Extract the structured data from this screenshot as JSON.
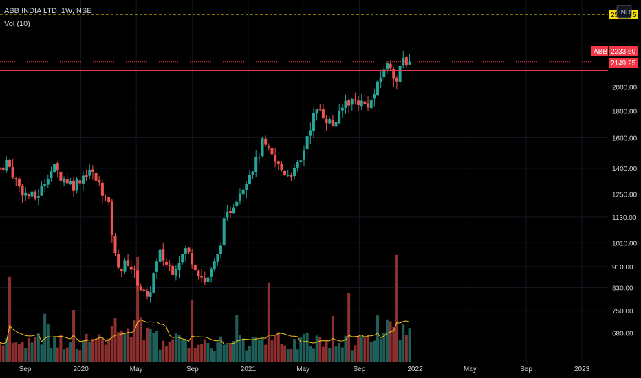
{
  "header": {
    "title": "ABB INDIA LTD, 1W, NSE",
    "volume_label": "Vol (10)"
  },
  "currency_badge": "INR",
  "colors": {
    "up": "#26a69a",
    "down": "#ef5350",
    "up_volume": "#1f5f5a",
    "down_volume": "#8c2f2e",
    "volume_ma": "#f5c518",
    "price_line": "#f23645",
    "alert_line": "#f5e000",
    "text": "#d1d4dc"
  },
  "chart_data": {
    "type": "candlestick",
    "title": "ABB INDIA LTD, 1W, NSE",
    "y_scale": "log",
    "ylim": [
      630,
      2650
    ],
    "y_ticks": [
      680,
      750,
      830,
      910,
      1010,
      1130,
      1250,
      1400,
      1600,
      1800,
      2000
    ],
    "y_tick_labels": [
      "680.00",
      "750.00",
      "830.00",
      "910.00",
      "1010.00",
      "1130.00",
      "1250.00",
      "1400.00",
      "1600.00",
      "1800.00",
      "2000.00"
    ],
    "x_range": [
      "2019-07-08",
      "2023-02-27"
    ],
    "x_ticks": [
      {
        "date": "2019-09-01",
        "label": "Sep"
      },
      {
        "date": "2020-01-01",
        "label": "2020"
      },
      {
        "date": "2020-05-01",
        "label": "May"
      },
      {
        "date": "2020-09-01",
        "label": "Sep"
      },
      {
        "date": "2021-01-01",
        "label": "2021"
      },
      {
        "date": "2021-05-01",
        "label": "May"
      },
      {
        "date": "2021-09-01",
        "label": "Sep"
      },
      {
        "date": "2022-01-01",
        "label": "2022"
      },
      {
        "date": "2022-05-01",
        "label": "May"
      },
      {
        "date": "2022-09-01",
        "label": "Sep"
      },
      {
        "date": "2023-01-01",
        "label": "2023"
      }
    ],
    "price_path": [
      [
        "2019-07-08",
        1400
      ],
      [
        "2019-07-22",
        1440
      ],
      [
        "2019-08-05",
        1370
      ],
      [
        "2019-08-19",
        1290
      ],
      [
        "2019-09-02",
        1250
      ],
      [
        "2019-09-23",
        1230
      ],
      [
        "2019-10-07",
        1280
      ],
      [
        "2019-10-21",
        1370
      ],
      [
        "2019-11-04",
        1400
      ],
      [
        "2019-11-18",
        1350
      ],
      [
        "2019-12-02",
        1330
      ],
      [
        "2019-12-16",
        1300
      ],
      [
        "2020-01-06",
        1360
      ],
      [
        "2020-01-20",
        1390
      ],
      [
        "2020-02-03",
        1330
      ],
      [
        "2020-02-17",
        1270
      ],
      [
        "2020-03-02",
        1180
      ],
      [
        "2020-03-16",
        950
      ],
      [
        "2020-03-30",
        900
      ],
      [
        "2020-04-13",
        930
      ],
      [
        "2020-04-27",
        880
      ],
      [
        "2020-05-11",
        830
      ],
      [
        "2020-05-25",
        780
      ],
      [
        "2020-06-08",
        880
      ],
      [
        "2020-06-22",
        960
      ],
      [
        "2020-07-06",
        920
      ],
      [
        "2020-07-20",
        900
      ],
      [
        "2020-08-03",
        940
      ],
      [
        "2020-08-17",
        980
      ],
      [
        "2020-08-31",
        940
      ],
      [
        "2020-09-14",
        890
      ],
      [
        "2020-09-28",
        850
      ],
      [
        "2020-10-12",
        890
      ],
      [
        "2020-10-26",
        950
      ],
      [
        "2020-11-09",
        1100
      ],
      [
        "2020-11-23",
        1170
      ],
      [
        "2020-12-07",
        1240
      ],
      [
        "2020-12-21",
        1300
      ],
      [
        "2021-01-04",
        1380
      ],
      [
        "2021-01-18",
        1440
      ],
      [
        "2021-02-01",
        1560
      ],
      [
        "2021-02-15",
        1500
      ],
      [
        "2021-03-01",
        1440
      ],
      [
        "2021-03-15",
        1390
      ],
      [
        "2021-03-29",
        1370
      ],
      [
        "2021-04-12",
        1380
      ],
      [
        "2021-04-26",
        1440
      ],
      [
        "2021-05-10",
        1620
      ],
      [
        "2021-05-24",
        1760
      ],
      [
        "2021-06-07",
        1810
      ],
      [
        "2021-06-21",
        1740
      ],
      [
        "2021-07-05",
        1690
      ],
      [
        "2021-07-19",
        1760
      ],
      [
        "2021-08-02",
        1880
      ],
      [
        "2021-08-16",
        1880
      ],
      [
        "2021-08-30",
        1880
      ],
      [
        "2021-09-13",
        1850
      ],
      [
        "2021-09-27",
        1880
      ],
      [
        "2021-10-11",
        2000
      ],
      [
        "2021-10-25",
        2180
      ],
      [
        "2021-11-08",
        2200
      ],
      [
        "2021-11-22",
        2050
      ],
      [
        "2021-12-06",
        2250
      ],
      [
        "2021-12-20",
        2233.6
      ]
    ],
    "volume_ylim": [
      0,
      3000000
    ],
    "last_price": 2233.6,
    "last_price_label": "2233.60",
    "symbol_label": "ABB",
    "horizontal_line_price": 2149.25,
    "horizontal_line_label": "2149.25",
    "alert_label_partial_left": "25",
    "alert_label_partial_right": "5"
  }
}
